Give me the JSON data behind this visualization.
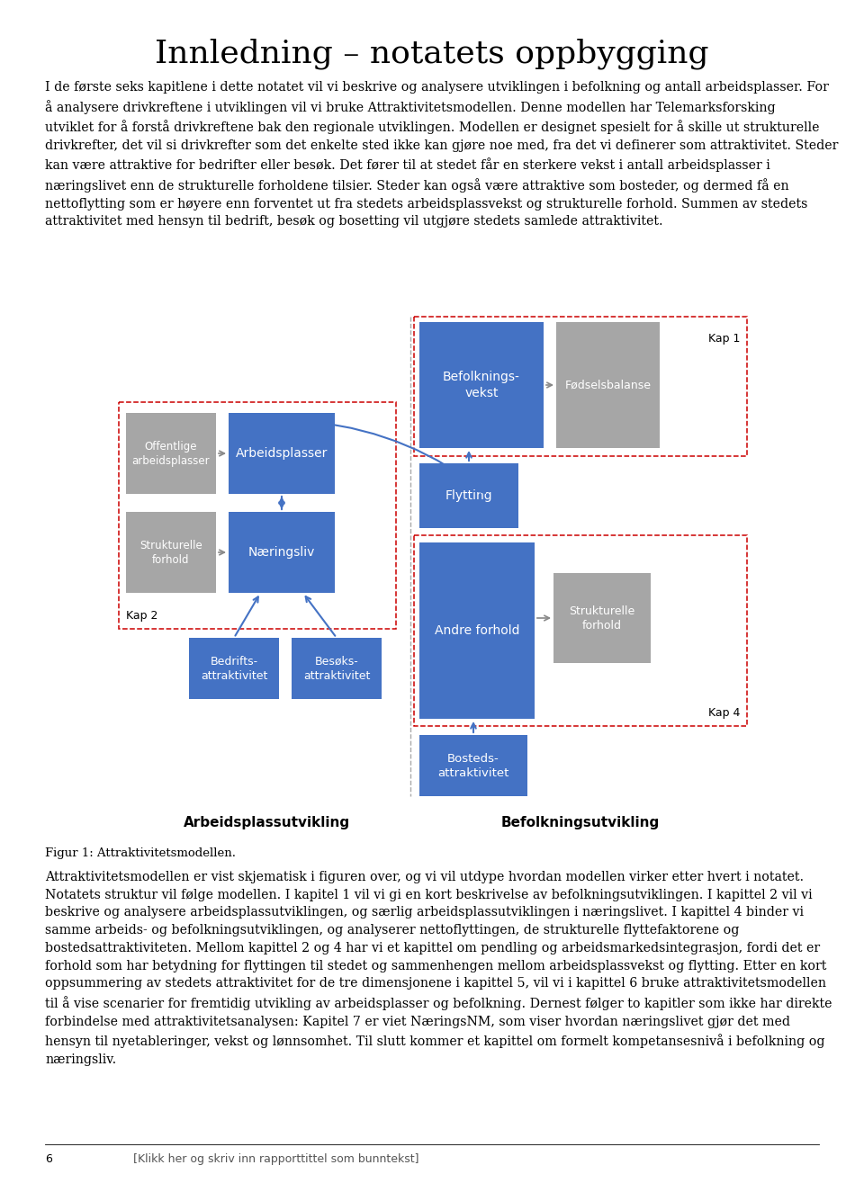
{
  "title": "Innledning – notatets oppbygging",
  "title_fontsize": 26,
  "body_text_1": "I de første seks kapitlene i dette notatet vil vi beskrive og analysere utviklingen i befolkning og antall arbeidsplasser. For\nå analysere drivkreftene i utviklingen vil vi bruke Attraktivitetsmodellen. Denne modellen har Telemarksforsking\nutviklet for å forstå drivkreftene bak den regionale utviklingen. Modellen er designet spesielt for å skille ut strukturelle\ndrivkrefter, det vil si drivkrefter som det enkelte sted ikke kan gjøre noe med, fra det vi definerer som attraktivitet. Steder\nkan være attraktive for bedrifter eller besøk. Det fører til at stedet får en sterkere vekst i antall arbeidsplasser i\nnæringslivet enn de strukturelle forholdene tilsier. Steder kan også være attraktive som bosteder, og dermed få en\nnettoflytting som er høyere enn forventet ut fra stedets arbeidsplassvekst og strukturelle forhold. Summen av stedets\nattraktivitet med hensyn til bedrift, besøk og bosetting vil utgjøre stedets samlede attraktivitet.",
  "fig_caption": "Figur 1: Attraktivitetsmodellen.",
  "body_text_2": "Attraktivitetsmodellen er vist skjematisk i figuren over, og vi vil utdype hvordan modellen virker etter hvert i notatet.\nNotatets struktur vil følge modellen. I kapitel 1 vil vi gi en kort beskrivelse av befolkningsutviklingen. I kapittel 2 vil vi\nbeskrive og analysere arbeidsplassutviklingen, og særlig arbeidsplassutviklingen i næringslivet. I kapittel 4 binder vi\nsamme arbeids- og befolkningsutviklingen, og analyserer nettoflyttingen, de strukturelle flyttefaktorene og\nbostedsattraktiviteten. Mellom kapittel 2 og 4 har vi et kapittel om pendling og arbeidsmarkedsintegrasjon, fordi det er\nforhold som har betydning for flyttingen til stedet og sammenhengen mellom arbeidsplassvekst og flytting. Etter en kort\noppsummering av stedets attraktivitet for de tre dimensjonene i kapittel 5, vil vi i kapittel 6 bruke attraktivitetsmodellen\ntil å vise scenarier for fremtidig utvikling av arbeidsplasser og befolkning. Dernest følger to kapitler som ikke har direkte\nforbindelse med attraktivitetsanalysen: Kapitel 7 er viet NæringsNM, som viser hvordan næringslivet gjør det med\nhensyn til nyetableringer, vekst og lønnsomhet. Til slutt kommer et kapittel om formelt kompetansesnivå i befolkning og\nnæringsliv.",
  "footer_num": "6",
  "footer_text": "[Klikk her og skriv inn rapporttittel som bunntekst]",
  "blue_color": "#4472C4",
  "gray_color": "#A6A6A6",
  "bg_white": "#FFFFFF",
  "dashed_red": "#CC0000"
}
